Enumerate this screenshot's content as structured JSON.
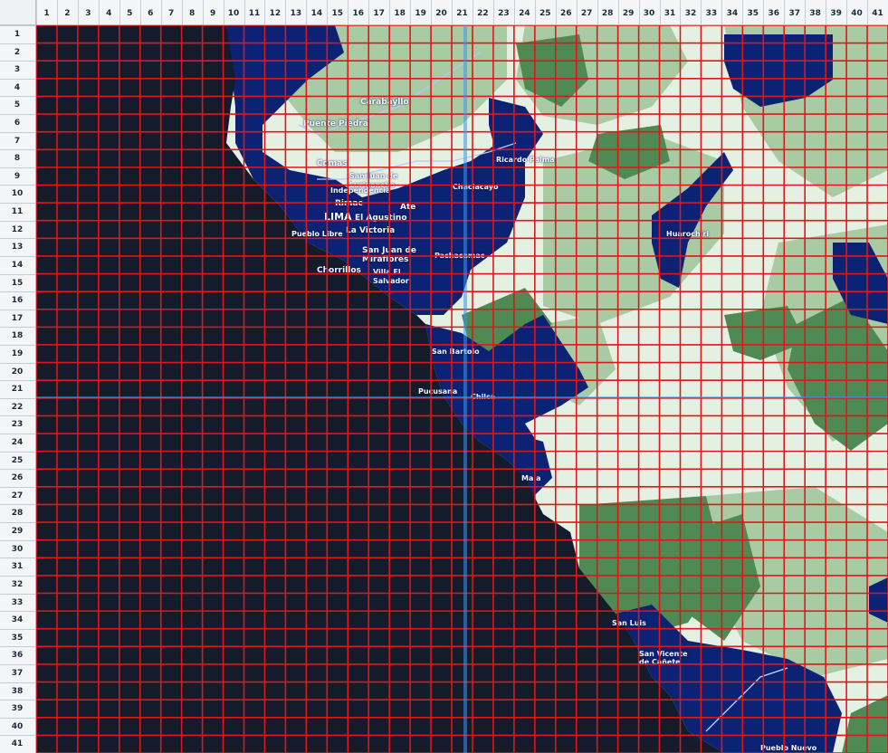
{
  "columns": [
    "1",
    "2",
    "3",
    "4",
    "5",
    "6",
    "7",
    "8",
    "9",
    "10",
    "11",
    "12",
    "13",
    "14",
    "15",
    "16",
    "17",
    "18",
    "19",
    "20",
    "21",
    "22",
    "23",
    "24",
    "25",
    "26",
    "27",
    "28",
    "29",
    "30",
    "31",
    "32",
    "33",
    "34",
    "35",
    "36",
    "37",
    "38",
    "39",
    "40",
    "41"
  ],
  "rows": [
    "1",
    "2",
    "3",
    "4",
    "5",
    "6",
    "7",
    "8",
    "9",
    "10",
    "11",
    "12",
    "13",
    "14",
    "15",
    "16",
    "17",
    "18",
    "19",
    "20",
    "21",
    "22",
    "23",
    "24",
    "25",
    "26",
    "27",
    "28",
    "29",
    "30",
    "31",
    "32",
    "33",
    "34",
    "35",
    "36",
    "37",
    "38",
    "39",
    "40",
    "41"
  ],
  "colors": {
    "ocean": "#141c2b",
    "district_blue": "#0b2275",
    "land_light": "#e4f1e2",
    "land_mid": "#a9cba3",
    "land_dark": "#4f8a55",
    "grid_line": "#e0161b",
    "header_bg": "#f3f5f7"
  },
  "map": {
    "places": [
      {
        "name": "Carabayllo"
      },
      {
        "name": "Puente Piedra"
      },
      {
        "name": "Comas"
      },
      {
        "name": "San Juan de Lurigancho"
      },
      {
        "name": "Independencia"
      },
      {
        "name": "Rimac"
      },
      {
        "name": "LIMA"
      },
      {
        "name": "El Agustino"
      },
      {
        "name": "Ate"
      },
      {
        "name": "La Victoria"
      },
      {
        "name": "Pueblo Libre"
      },
      {
        "name": "San Juan de Miraflores"
      },
      {
        "name": "Chorrillos"
      },
      {
        "name": "Villa El Salvador"
      },
      {
        "name": "Pachacamac"
      },
      {
        "name": "Chaclacayo"
      },
      {
        "name": "Ricardo Palma"
      },
      {
        "name": "San Bartolo"
      },
      {
        "name": "Pucusana"
      },
      {
        "name": "Chilca"
      },
      {
        "name": "Mala"
      },
      {
        "name": "San Luis"
      },
      {
        "name": "San Vicente de Cañete"
      },
      {
        "name": "Huarochiri"
      },
      {
        "name": "Pueblo Nuevo"
      }
    ]
  }
}
